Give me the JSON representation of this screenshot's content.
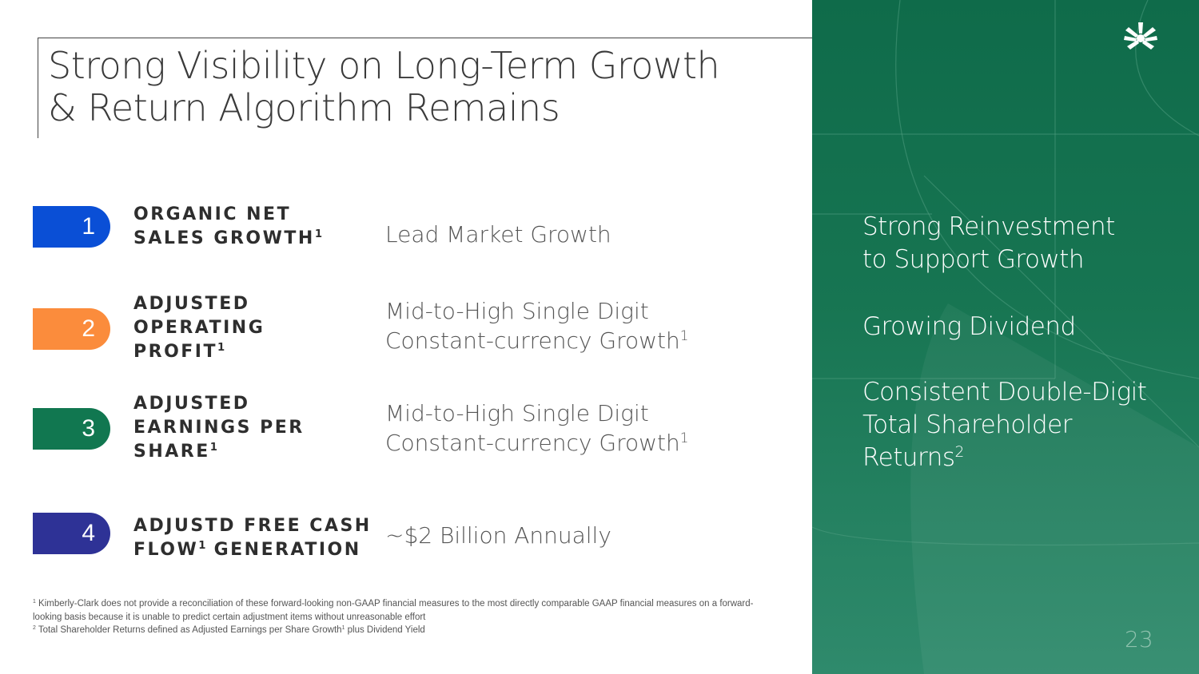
{
  "title": {
    "line1": "Strong Visibility on Long-Term Growth",
    "line2": "& Return Algorithm Remains"
  },
  "metrics": [
    {
      "number": "1",
      "color": "#0a4fd6",
      "label_lines": [
        "ORGANIC NET",
        "SALES GROWTH"
      ],
      "label_sup": "1",
      "value_lines": [
        "Lead Market Growth"
      ],
      "value_sup": ""
    },
    {
      "number": "2",
      "color": "#fb8c3c",
      "label_lines": [
        "ADJUSTED",
        "OPERATING",
        "PROFIT"
      ],
      "label_sup": "1",
      "value_lines": [
        "Mid-to-High Single Digit",
        "Constant-currency Growth"
      ],
      "value_sup": "1"
    },
    {
      "number": "3",
      "color": "#117750",
      "label_lines": [
        "ADJUSTED",
        "EARNINGS PER",
        "SHARE"
      ],
      "label_sup": "1",
      "value_lines": [
        "Mid-to-High Single Digit",
        "Constant-currency Growth"
      ],
      "value_sup": "1"
    },
    {
      "number": "4",
      "color": "#2e3296",
      "label_lines": [
        "ADJUSTD FREE CASH",
        "FLOW",
        " GENERATION"
      ],
      "label_sup": "1",
      "value_lines": [
        "~$2 Billion Annually"
      ],
      "value_sup": ""
    }
  ],
  "footnotes": {
    "note1_marker": "1",
    "note1_line1": "Kimberly-Clark does not provide a reconciliation of these forward-looking non-GAAP financial measures to the most directly comparable GAAP financial measures on a forward-",
    "note1_line2": "looking basis because it is unable to predict certain adjustment items without unreasonable effort",
    "note2_marker": "2",
    "note2_text_a": "Total Shareholder Returns defined as Adjusted Earnings per Share Growth",
    "note2_sup": "1",
    "note2_text_b": " plus Dividend Yield"
  },
  "goals": {
    "item1_line1": "Strong Reinvestment",
    "item1_line2": "to Support Growth",
    "item2": "Growing Dividend",
    "item3_line1": "Consistent Double-Digit",
    "item3_line2": "Total Shareholder",
    "item3_line3": "Returns",
    "item3_sup": "2"
  },
  "page_number": "23",
  "colors": {
    "panel_green": "#147250",
    "logo": "#ffffff"
  },
  "icons": {
    "logo": "kimberly-clark-logo-icon"
  }
}
